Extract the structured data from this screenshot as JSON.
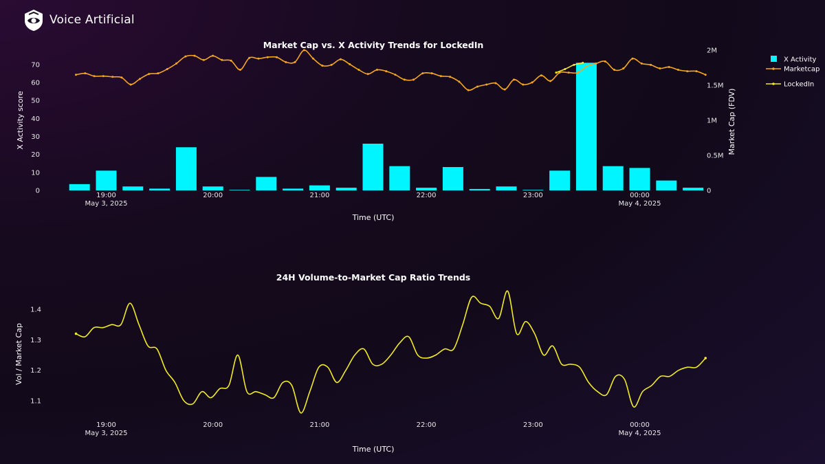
{
  "brand": {
    "name": "Voice Artificial",
    "logo_icon": "shield-eye-icon"
  },
  "colors": {
    "bar": "#00f5ff",
    "marketcap": "#f5a623",
    "ratio": "#f0ea2a"
  },
  "chart_data": [
    {
      "type": "bar+line",
      "title": "Market Cap vs. X Activity Trends for LockedIn",
      "xlabel": "Time (UTC)",
      "ylabel": "X Activity score",
      "y2label": "Market Cap (FDV)",
      "x_range": [
        "18:37",
        "00:23"
      ],
      "ylim": [
        0,
        78
      ],
      "y2lim": [
        0,
        2000000
      ],
      "yticks": [
        0,
        10,
        20,
        30,
        40,
        50,
        60,
        70
      ],
      "y2ticks": [
        {
          "value": 0,
          "label": "0"
        },
        {
          "value": 500000,
          "label": "0.5M"
        },
        {
          "value": 1000000,
          "label": "1M"
        },
        {
          "value": 1500000,
          "label": "1.5M"
        },
        {
          "value": 2000000,
          "label": "2M"
        }
      ],
      "xticks": [
        {
          "time": "19:00",
          "label": "19:00",
          "sublabel": "May 3, 2025"
        },
        {
          "time": "20:00",
          "label": "20:00",
          "sublabel": ""
        },
        {
          "time": "21:00",
          "label": "21:00",
          "sublabel": ""
        },
        {
          "time": "22:00",
          "label": "22:00",
          "sublabel": ""
        },
        {
          "time": "23:00",
          "label": "23:00",
          "sublabel": ""
        },
        {
          "time": "00:00",
          "label": "00:00",
          "sublabel": "May 4, 2025"
        }
      ],
      "legend": {
        "position": "right",
        "entries": [
          "X Activity",
          "Marketcap",
          "LockedIn"
        ]
      },
      "bars": {
        "name": "X Activity",
        "x": [
          "18:45",
          "19:00",
          "19:15",
          "19:30",
          "19:45",
          "20:00",
          "20:15",
          "20:30",
          "20:45",
          "21:00",
          "21:15",
          "21:30",
          "21:45",
          "22:00",
          "22:15",
          "22:30",
          "22:45",
          "23:00",
          "23:15",
          "23:30",
          "23:45",
          "00:00",
          "00:15",
          "00:30"
        ],
        "values": [
          3.5,
          11,
          2.2,
          1,
          24,
          2.2,
          0.3,
          7.5,
          1,
          2.8,
          1.5,
          26,
          13.5,
          1.5,
          13,
          0.8,
          2.2,
          0.3,
          11,
          71,
          13.5,
          12.5,
          5.5,
          1.5
        ]
      },
      "marketcap": {
        "name": "Marketcap",
        "x_start": "18:43",
        "x_end": "00:37",
        "values": [
          1650000,
          1670000,
          1630000,
          1630000,
          1620000,
          1610000,
          1510000,
          1590000,
          1660000,
          1670000,
          1730000,
          1810000,
          1910000,
          1920000,
          1860000,
          1920000,
          1860000,
          1850000,
          1720000,
          1890000,
          1880000,
          1900000,
          1900000,
          1830000,
          1830000,
          2000000,
          1880000,
          1780000,
          1790000,
          1870000,
          1800000,
          1720000,
          1660000,
          1720000,
          1700000,
          1650000,
          1580000,
          1580000,
          1670000,
          1670000,
          1630000,
          1620000,
          1550000,
          1430000,
          1480000,
          1510000,
          1530000,
          1440000,
          1580000,
          1510000,
          1540000,
          1640000,
          1560000,
          1680000,
          1680000,
          1680000,
          1770000,
          1810000,
          1840000,
          1720000,
          1740000,
          1880000,
          1810000,
          1790000,
          1740000,
          1760000,
          1720000,
          1700000,
          1700000,
          1650000
        ]
      },
      "lockedin": {
        "name": "LockedIn",
        "x_start": "23:13",
        "x_end": "23:28",
        "values": [
          1680000,
          1730000,
          1790000,
          1820000
        ]
      }
    },
    {
      "type": "line",
      "title": "24H Volume-to-Market Cap Ratio Trends",
      "xlabel": "Time (UTC)",
      "ylabel": "Vol / Market Cap",
      "x_range": [
        "18:37",
        "00:23"
      ],
      "ylim": [
        1.04,
        1.48
      ],
      "yticks": [
        1.1,
        1.2,
        1.3,
        1.4
      ],
      "xticks": [
        {
          "time": "19:00",
          "label": "19:00",
          "sublabel": "May 3, 2025"
        },
        {
          "time": "20:00",
          "label": "20:00",
          "sublabel": ""
        },
        {
          "time": "21:00",
          "label": "21:00",
          "sublabel": ""
        },
        {
          "time": "22:00",
          "label": "22:00",
          "sublabel": ""
        },
        {
          "time": "23:00",
          "label": "23:00",
          "sublabel": ""
        },
        {
          "time": "00:00",
          "label": "00:00",
          "sublabel": "May 4, 2025"
        }
      ],
      "series": [
        {
          "name": "Vol / Market Cap",
          "x_start": "18:43",
          "x_end": "00:37",
          "values": [
            1.32,
            1.31,
            1.34,
            1.34,
            1.35,
            1.35,
            1.42,
            1.35,
            1.28,
            1.27,
            1.2,
            1.16,
            1.1,
            1.09,
            1.13,
            1.11,
            1.14,
            1.15,
            1.25,
            1.13,
            1.13,
            1.12,
            1.11,
            1.16,
            1.15,
            1.06,
            1.13,
            1.21,
            1.21,
            1.16,
            1.2,
            1.25,
            1.27,
            1.22,
            1.22,
            1.25,
            1.29,
            1.31,
            1.25,
            1.24,
            1.25,
            1.27,
            1.27,
            1.35,
            1.44,
            1.42,
            1.41,
            1.37,
            1.46,
            1.32,
            1.36,
            1.32,
            1.25,
            1.28,
            1.22,
            1.22,
            1.21,
            1.16,
            1.13,
            1.12,
            1.18,
            1.17,
            1.08,
            1.13,
            1.15,
            1.18,
            1.18,
            1.2,
            1.21,
            1.21,
            1.24
          ]
        }
      ]
    }
  ]
}
